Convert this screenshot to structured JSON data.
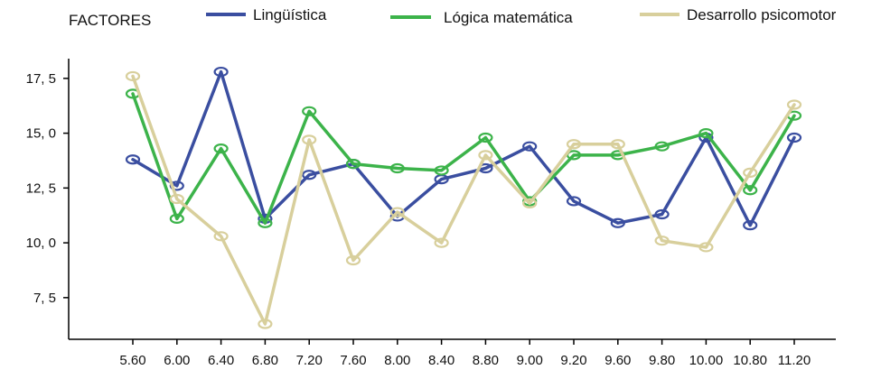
{
  "chart_data": {
    "type": "line",
    "legend_title": "FACTORES",
    "legend_position": "top",
    "grid": false,
    "categories": [
      "5.60",
      "6.00",
      "6.40",
      "6.80",
      "7.20",
      "7.60",
      "8.00",
      "8.40",
      "8.80",
      "9.00",
      "9.20",
      "9.60",
      "9.80",
      "10.00",
      "10.80",
      "11.20"
    ],
    "y_ticks": [
      "7, 5",
      "10, 0",
      "12, 5",
      "15, 0",
      "17, 5"
    ],
    "y_tick_values": [
      7.5,
      10.0,
      12.5,
      15.0,
      17.5
    ],
    "ylim": [
      5.6,
      18.4
    ],
    "series": [
      {
        "name": "Lingüística",
        "color": "#3a4ea0",
        "values": [
          13.8,
          12.6,
          17.8,
          11.1,
          13.1,
          13.6,
          11.2,
          12.9,
          13.4,
          14.4,
          11.9,
          10.9,
          11.3,
          14.8,
          10.8,
          14.8
        ]
      },
      {
        "name": "Lógica matemática",
        "color": "#3cb34a",
        "values": [
          16.8,
          11.1,
          14.3,
          10.9,
          16.0,
          13.6,
          13.4,
          13.3,
          14.8,
          11.9,
          14.0,
          14.0,
          14.4,
          15.0,
          12.4,
          15.8
        ]
      },
      {
        "name": "Desarrollo psicomotor",
        "color": "#d8cf9c",
        "values": [
          17.6,
          12.0,
          10.3,
          6.3,
          14.7,
          9.2,
          11.4,
          10.0,
          14.0,
          11.8,
          14.5,
          14.5,
          10.1,
          9.8,
          13.2,
          16.3
        ]
      }
    ]
  }
}
